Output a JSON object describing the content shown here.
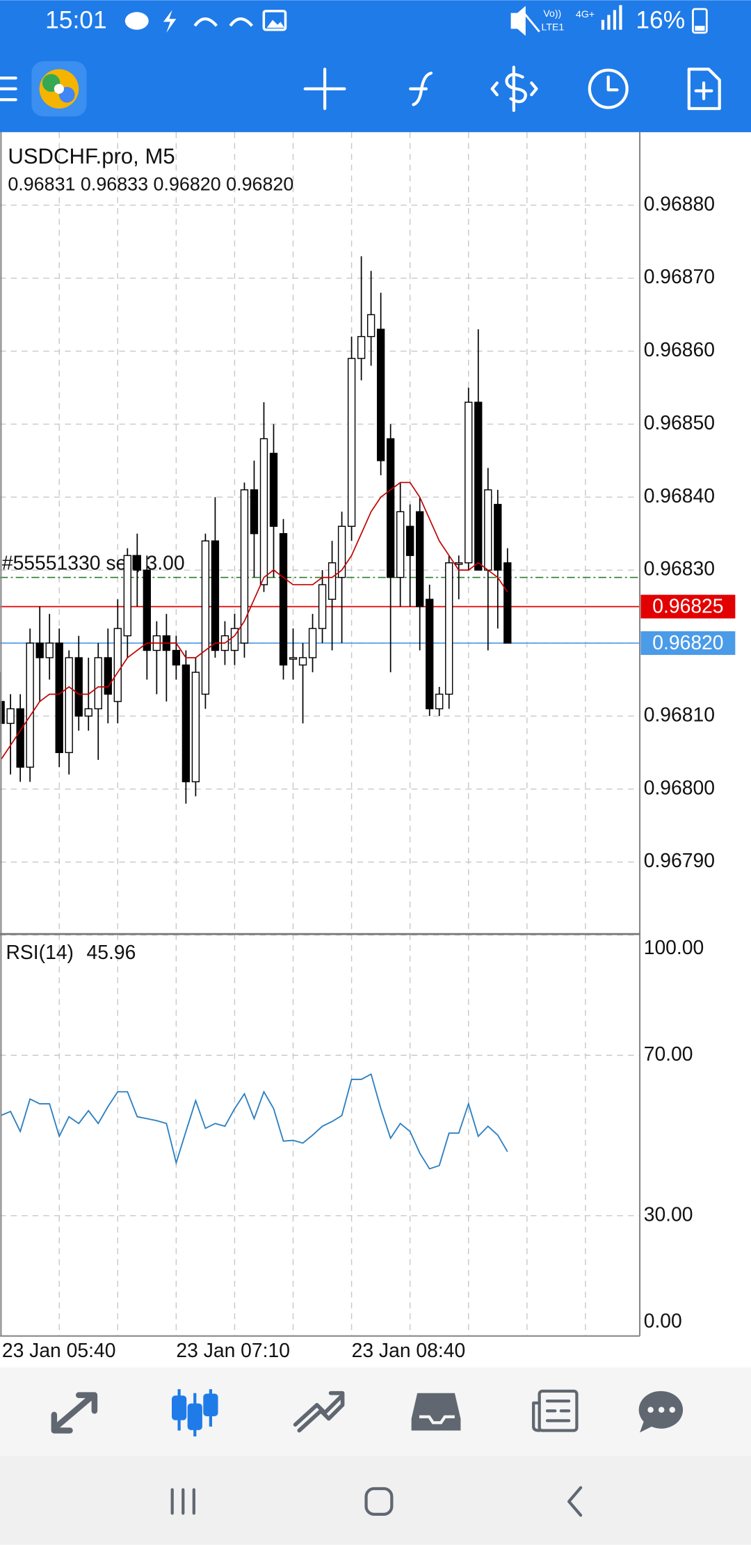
{
  "status_bar": {
    "time": "15:01",
    "volte": "Vo))",
    "lte": "LTE1",
    "network": "4G+",
    "battery": "16%"
  },
  "chart_data": [
    {
      "type": "candlestick",
      "title": "USDCHF.pro, M5",
      "ohlc": "0.96831 0.96833 0.96820 0.96820",
      "categories": [
        "23 Jan 05:40",
        null,
        null,
        null,
        null,
        null,
        null,
        null,
        null,
        null,
        null,
        null,
        null,
        null,
        null,
        null,
        null,
        null,
        "23 Jan 07:10",
        null,
        null,
        null,
        null,
        null,
        null,
        null,
        null,
        null,
        null,
        null,
        null,
        null,
        null,
        null,
        null,
        null,
        "23 Jan 08:40",
        null,
        null,
        null,
        null,
        null,
        null,
        null,
        null,
        null,
        null,
        null,
        null,
        null,
        null,
        null,
        null
      ],
      "candles": [
        [
          0.96812,
          0.96816,
          0.96805,
          0.96809
        ],
        [
          0.96809,
          0.96813,
          0.96802,
          0.96811
        ],
        [
          0.96811,
          0.96813,
          0.96801,
          0.96803
        ],
        [
          0.96803,
          0.96822,
          0.96801,
          0.9682
        ],
        [
          0.9682,
          0.96825,
          0.96812,
          0.96818
        ],
        [
          0.96818,
          0.96824,
          0.96815,
          0.9682
        ],
        [
          0.9682,
          0.96822,
          0.96803,
          0.96805
        ],
        [
          0.96805,
          0.96819,
          0.96802,
          0.96818
        ],
        [
          0.96818,
          0.96821,
          0.96808,
          0.9681
        ],
        [
          0.9681,
          0.96818,
          0.96808,
          0.96811
        ],
        [
          0.96811,
          0.9682,
          0.96804,
          0.96818
        ],
        [
          0.96818,
          0.96822,
          0.96809,
          0.96813
        ],
        [
          0.96812,
          0.96826,
          0.96809,
          0.96822
        ],
        [
          0.96821,
          0.96833,
          0.96818,
          0.96832
        ],
        [
          0.96832,
          0.96835,
          0.96825,
          0.9683
        ],
        [
          0.9683,
          0.96832,
          0.96815,
          0.96819
        ],
        [
          0.96819,
          0.96823,
          0.96813,
          0.96821
        ],
        [
          0.96821,
          0.96824,
          0.96812,
          0.96819
        ],
        [
          0.96819,
          0.96821,
          0.96815,
          0.96817
        ],
        [
          0.96817,
          0.96819,
          0.96798,
          0.96801
        ],
        [
          0.96801,
          0.96818,
          0.96799,
          0.96816
        ],
        [
          0.96813,
          0.96835,
          0.96811,
          0.96834
        ],
        [
          0.96834,
          0.9684,
          0.96818,
          0.96819
        ],
        [
          0.96819,
          0.96823,
          0.96817,
          0.96821
        ],
        [
          0.96819,
          0.96824,
          0.96817,
          0.96822
        ],
        [
          0.9682,
          0.96842,
          0.96818,
          0.96841
        ],
        [
          0.96841,
          0.96845,
          0.96829,
          0.96835
        ],
        [
          0.96828,
          0.96853,
          0.96827,
          0.96848
        ],
        [
          0.96846,
          0.9685,
          0.96829,
          0.96836
        ],
        [
          0.96835,
          0.96837,
          0.96815,
          0.96817
        ],
        [
          0.96818,
          0.96822,
          0.96815,
          0.96818
        ],
        [
          0.96817,
          0.9682,
          0.96809,
          0.96818
        ],
        [
          0.96818,
          0.96824,
          0.96816,
          0.96822
        ],
        [
          0.96822,
          0.9683,
          0.9682,
          0.96828
        ],
        [
          0.96826,
          0.96834,
          0.96819,
          0.96831
        ],
        [
          0.96829,
          0.96838,
          0.9682,
          0.96836
        ],
        [
          0.96836,
          0.96862,
          0.96834,
          0.96859
        ],
        [
          0.96859,
          0.96873,
          0.96856,
          0.96862
        ],
        [
          0.96862,
          0.96871,
          0.96858,
          0.96865
        ],
        [
          0.96863,
          0.96868,
          0.96843,
          0.96845
        ],
        [
          0.96848,
          0.9685,
          0.96816,
          0.96829
        ],
        [
          0.96829,
          0.96842,
          0.96825,
          0.96838
        ],
        [
          0.96836,
          0.96839,
          0.96825,
          0.96832
        ],
        [
          0.96838,
          0.9684,
          0.96819,
          0.96825
        ],
        [
          0.96826,
          0.96828,
          0.9681,
          0.96811
        ],
        [
          0.96811,
          0.96814,
          0.9681,
          0.96813
        ],
        [
          0.96813,
          0.96832,
          0.96811,
          0.96831
        ],
        [
          0.96831,
          0.96832,
          0.96826,
          0.96831
        ],
        [
          0.96831,
          0.96855,
          0.9683,
          0.96853
        ],
        [
          0.96853,
          0.96863,
          0.9683,
          0.9683
        ],
        [
          0.9683,
          0.96844,
          0.96819,
          0.96841
        ],
        [
          0.96839,
          0.96841,
          0.96822,
          0.9683
        ],
        [
          0.96831,
          0.96833,
          0.9682,
          0.9682
        ]
      ],
      "up_color": "#ffffff",
      "down_color": "#000000",
      "ma": {
        "color": "#c00000",
        "values": [
          0.96804,
          0.96806,
          0.96808,
          0.9681,
          0.96812,
          0.96813,
          0.96813,
          0.96814,
          0.96813,
          0.96813,
          0.96814,
          0.96814,
          0.96816,
          0.96818,
          0.96819,
          0.9682,
          0.9682,
          0.9682,
          0.9682,
          0.96818,
          0.96818,
          0.96819,
          0.9682,
          0.9682,
          0.96821,
          0.96823,
          0.96826,
          0.96829,
          0.9683,
          0.96829,
          0.96828,
          0.96828,
          0.96828,
          0.96829,
          0.96829,
          0.9683,
          0.96832,
          0.96835,
          0.96838,
          0.9684,
          0.96841,
          0.96842,
          0.96842,
          0.9684,
          0.96837,
          0.96834,
          0.96832,
          0.9683,
          0.9683,
          0.96831,
          0.9683,
          0.96829,
          0.96827
        ]
      },
      "levels": [
        {
          "text": "#55551330 sell, 3.00",
          "value": 0.96829,
          "color": "#2e7d32"
        },
        {
          "value": 0.96825,
          "label": "0.96825",
          "color": "#e30000"
        },
        {
          "value": 0.9682,
          "label": "0.96820",
          "color": "#4a9be8"
        }
      ],
      "ylim": [
        0.9678,
        0.9689
      ],
      "yticks": [
        {
          "value": 0.9679,
          "label": "0.96790"
        },
        {
          "value": 0.968,
          "label": "0.96800"
        },
        {
          "value": 0.9681,
          "label": "0.96810"
        },
        {
          "value": 0.9682,
          "label": "0.96820"
        },
        {
          "value": 0.9683,
          "label": "0.96830"
        },
        {
          "value": 0.9684,
          "label": "0.96840"
        },
        {
          "value": 0.9685,
          "label": "0.96850"
        },
        {
          "value": 0.9686,
          "label": "0.96860"
        },
        {
          "value": 0.9687,
          "label": "0.96870"
        },
        {
          "value": 0.9688,
          "label": "0.96880"
        }
      ],
      "grid": true
    },
    {
      "type": "line",
      "title": "RSI(14)",
      "series": [
        {
          "color": "#2b7fc1",
          "values": [
            55.0,
            56.0,
            51.0,
            59.1,
            57.9,
            57.9,
            49.8,
            54.7,
            53.0,
            56.2,
            53.0,
            57.2,
            60.9,
            60.9,
            54.7,
            54.2,
            53.7,
            53.0,
            43.2,
            51.0,
            58.7,
            51.8,
            53.0,
            52.3,
            56.7,
            60.4,
            54.2,
            60.9,
            56.7,
            48.6,
            48.8,
            48.1,
            50.1,
            52.3,
            53.5,
            55.0,
            64.0,
            64.0,
            65.3,
            56.7,
            49.3,
            53.0,
            51.0,
            45.6,
            41.7,
            42.5,
            50.6,
            50.6,
            57.9,
            49.8,
            52.3,
            50.1,
            45.96
          ]
        }
      ],
      "ylim": [
        0,
        100
      ],
      "yticks": [
        {
          "value": 0,
          "label": "0.00"
        },
        {
          "value": 30,
          "label": "30.00"
        },
        {
          "value": 70,
          "label": "70.00"
        },
        {
          "value": 100,
          "label": "100.00"
        }
      ],
      "grid": true
    }
  ]
}
